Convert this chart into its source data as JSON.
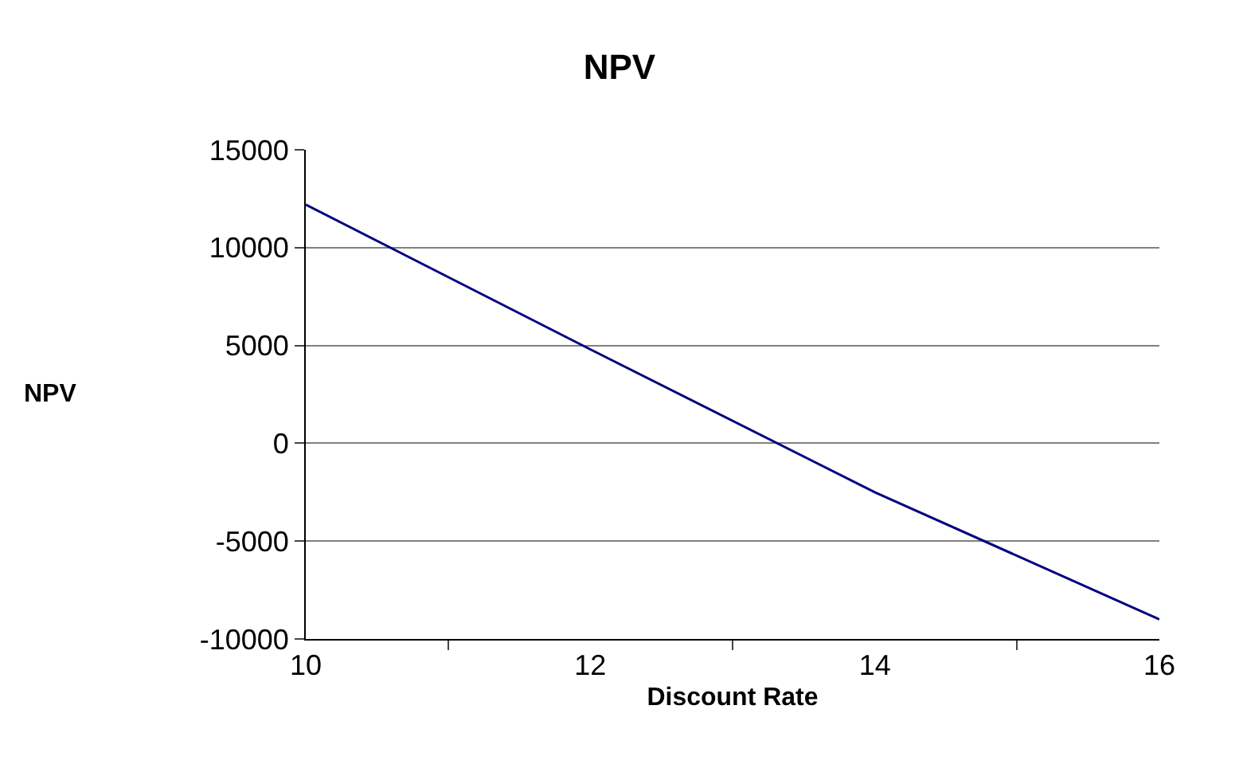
{
  "chart_data": {
    "type": "line",
    "title": "NPV",
    "xlabel": "Discount Rate",
    "ylabel": "NPV",
    "categories": [
      "10",
      "12",
      "14",
      "16"
    ],
    "series": [
      {
        "color": "#000080",
        "values": [
          12200,
          4800,
          -2500,
          -9000
        ]
      }
    ],
    "ylim": [
      -10000,
      15000
    ],
    "yticks": [
      -10000,
      -5000,
      0,
      5000,
      10000,
      15000
    ],
    "grid": "y",
    "marker": "none",
    "line_style": "solid"
  }
}
